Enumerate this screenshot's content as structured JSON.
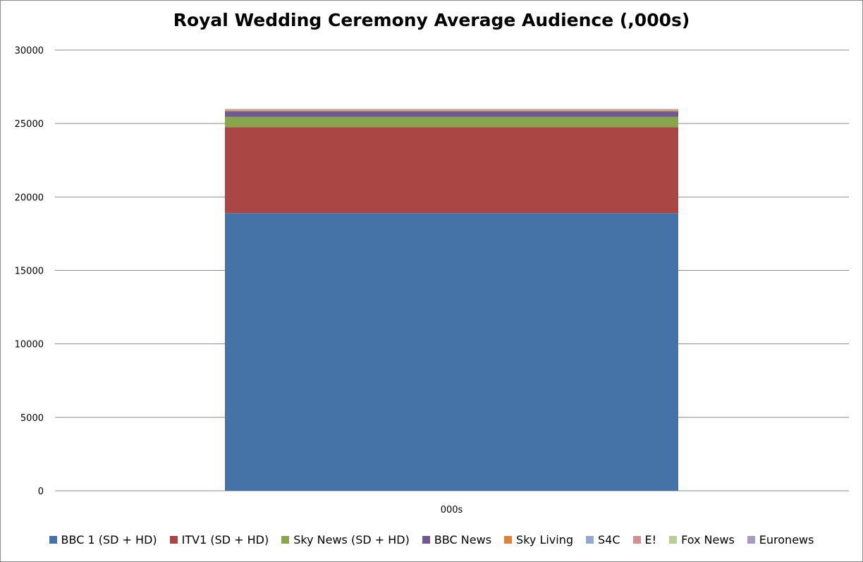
{
  "chart_data": {
    "type": "bar",
    "stacked": true,
    "title": "Royal Wedding Ceremony Average Audience (,000s)",
    "xlabel": "",
    "ylabel": "",
    "categories": [
      "000s"
    ],
    "ylim": [
      0,
      30000
    ],
    "yticks": [
      0,
      5000,
      10000,
      15000,
      20000,
      25000,
      30000
    ],
    "grid": true,
    "legend_position": "bottom",
    "series": [
      {
        "name": "BBC 1 (SD + HD)",
        "values": [
          18900
        ],
        "color": "#4572A7"
      },
      {
        "name": "ITV1 (SD + HD)",
        "values": [
          5850
        ],
        "color": "#AA4643"
      },
      {
        "name": "Sky News (SD + HD)",
        "values": [
          700
        ],
        "color": "#89A54E"
      },
      {
        "name": "BBC News",
        "values": [
          370
        ],
        "color": "#71588F"
      },
      {
        "name": "Sky Living",
        "values": [
          60
        ],
        "color": "#DB843D"
      },
      {
        "name": "S4C",
        "values": [
          50
        ],
        "color": "#93A9CF"
      },
      {
        "name": "E!",
        "values": [
          40
        ],
        "color": "#D19392"
      },
      {
        "name": "Fox News",
        "values": [
          20
        ],
        "color": "#B9CD96"
      },
      {
        "name": "Euronews",
        "values": [
          10
        ],
        "color": "#A99BBD"
      }
    ]
  }
}
